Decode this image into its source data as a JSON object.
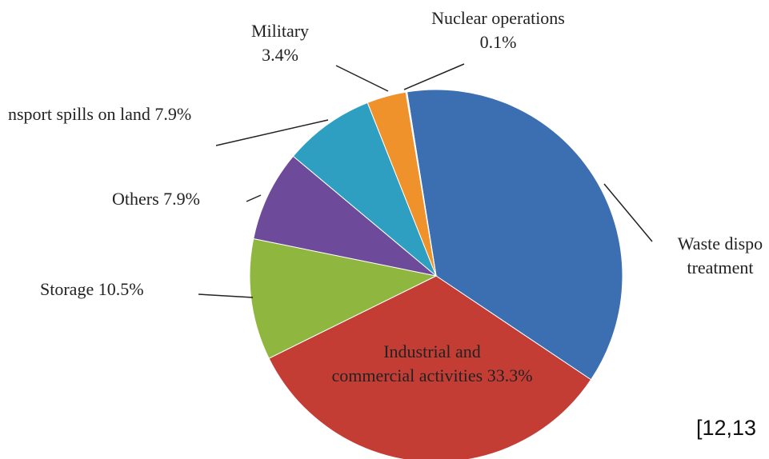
{
  "chart_data": {
    "type": "pie",
    "categories": [
      "Waste dispo\ntreatment",
      "Industrial and\ncommercial activities",
      "Storage",
      "Others",
      "nsport spills on land",
      "Military",
      "Nuclear operations"
    ],
    "values": [
      36.9,
      33.3,
      10.5,
      7.9,
      7.9,
      3.4,
      0.1
    ],
    "value_labels": [
      null,
      "33.3%",
      "10.5%",
      "7.9%",
      "7.9%",
      "3.4%",
      "0.1%"
    ],
    "colors": [
      "#3b6fb2",
      "#c43d35",
      "#8fb63e",
      "#6d4b9a",
      "#2f9fc1",
      "#f0922b",
      "#e8e8e8"
    ],
    "source": "[12,13"
  }
}
